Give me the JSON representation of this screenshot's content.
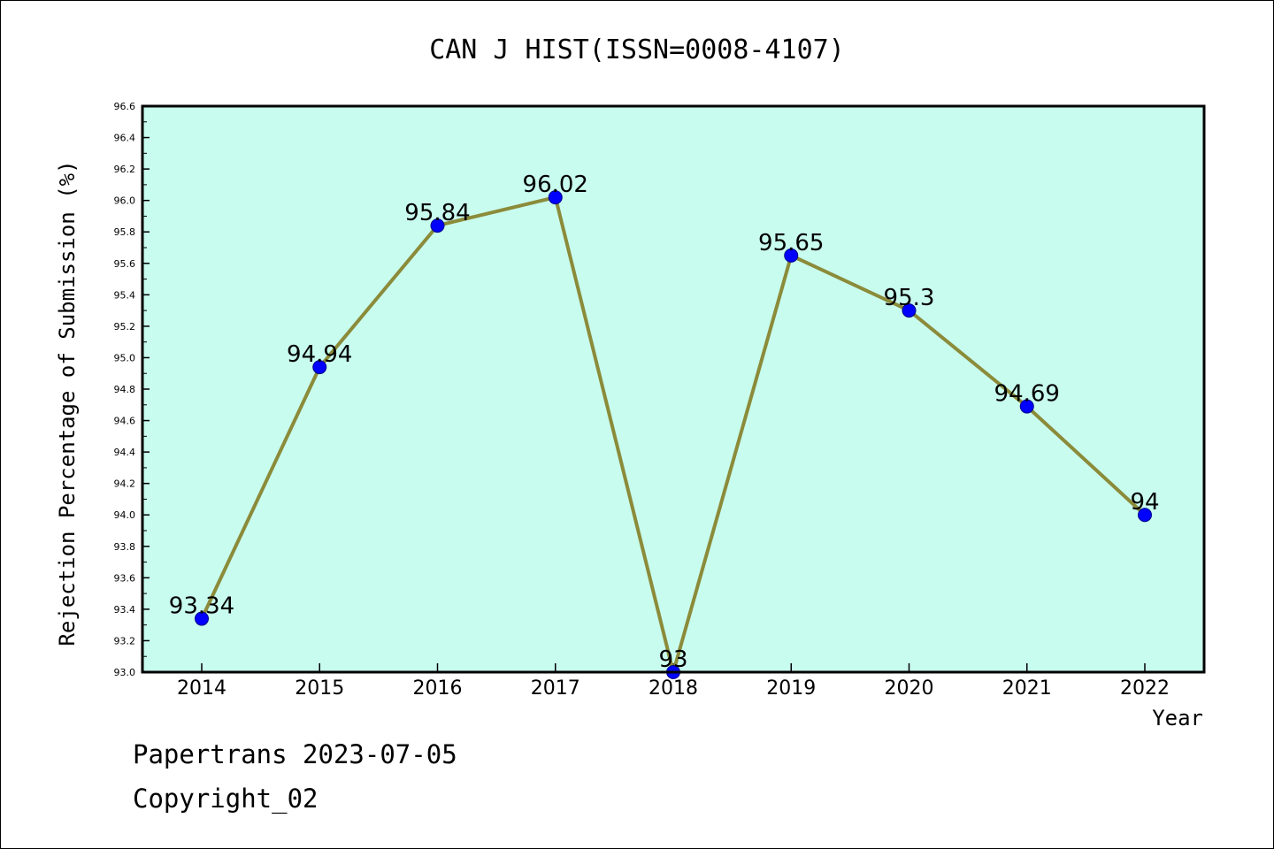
{
  "chart_data": {
    "type": "line",
    "title": "CAN J HIST(ISSN=0008-4107)",
    "xlabel": "Year",
    "ylabel": "Rejection Percentage of Submission (%)",
    "categories": [
      "2014",
      "2015",
      "2016",
      "2017",
      "2018",
      "2019",
      "2020",
      "2021",
      "2022"
    ],
    "series": [
      {
        "values": [
          93.34,
          94.94,
          95.84,
          96.02,
          93,
          95.65,
          95.3,
          94.69,
          94
        ]
      }
    ],
    "data_labels": [
      "93.34",
      "94.94",
      "95.84",
      "96.02",
      "93",
      "95.65",
      "95.3",
      "94.69",
      "94"
    ],
    "ylim": [
      93.0,
      96.6
    ],
    "yticks": [
      "93.0",
      "93.2",
      "93.4",
      "93.6",
      "93.8",
      "94.0",
      "94.2",
      "94.4",
      "94.6",
      "94.8",
      "95.0",
      "95.2",
      "95.4",
      "95.6",
      "95.8",
      "96.0",
      "96.2",
      "96.4",
      "96.6"
    ],
    "grid": false,
    "colors": {
      "plot_background": "#c8fcee",
      "line": "#8b8b3a",
      "marker": "#0000ff"
    }
  },
  "footer": {
    "line1": "Papertrans 2023-07-05",
    "line2": "Copyright_02"
  }
}
